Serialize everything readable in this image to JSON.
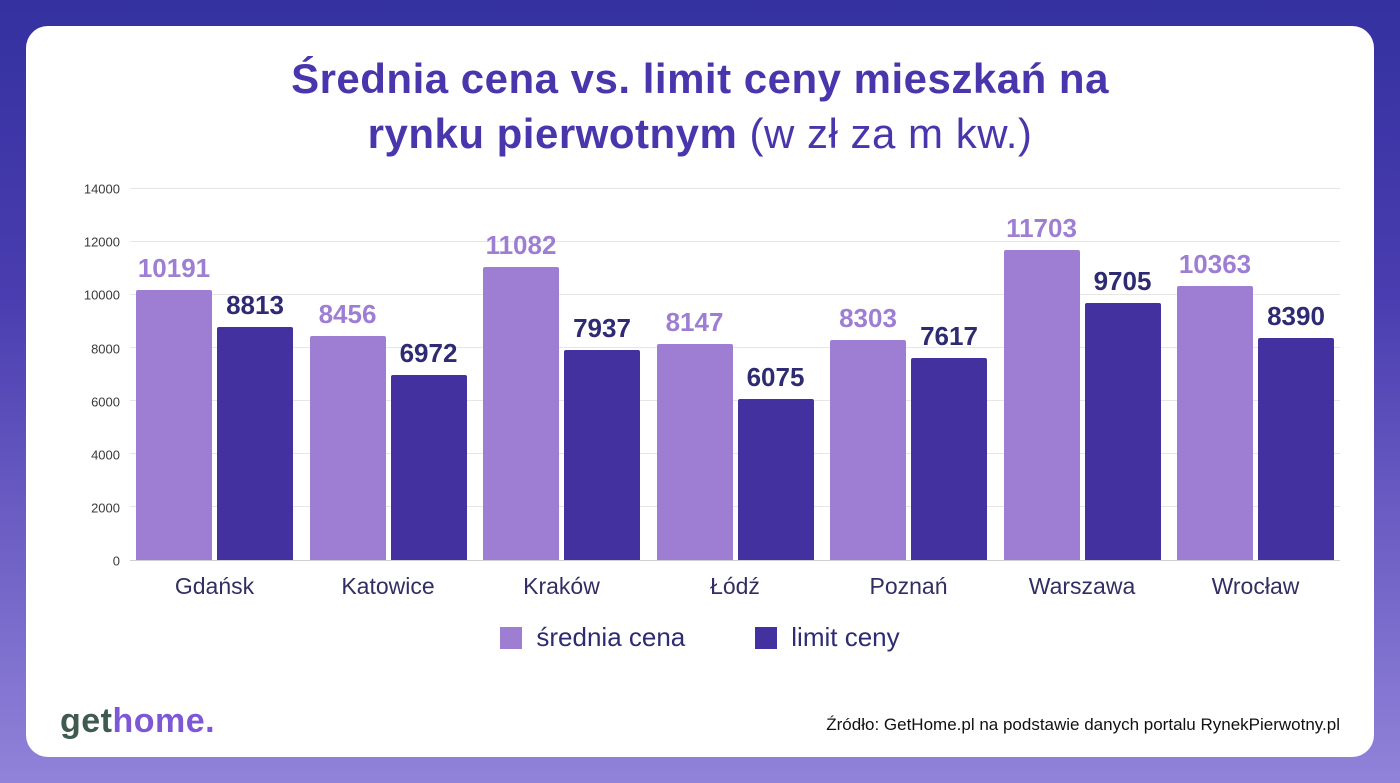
{
  "title": {
    "line1_bold": "Średnia cena vs. limit ceny mieszkań na",
    "line2_bold": "rynku pierwotnym",
    "line2_regular": " (w zł za m kw.)"
  },
  "chart_data": {
    "type": "bar",
    "categories": [
      "Gdańsk",
      "Katowice",
      "Kraków",
      "Łódź",
      "Poznań",
      "Warszawa",
      "Wrocław"
    ],
    "series": [
      {
        "name": "średnia cena",
        "color": "#9d7ed3",
        "label_color": "#9d7ed3",
        "values": [
          10191,
          8456,
          11082,
          8147,
          8303,
          11703,
          10363
        ]
      },
      {
        "name": "limit ceny",
        "color": "#43319f",
        "label_color": "#2e2b72",
        "values": [
          8813,
          6972,
          7937,
          6075,
          7617,
          9705,
          8390
        ]
      }
    ],
    "ylim": [
      0,
      14000
    ],
    "yticks": [
      0,
      2000,
      4000,
      6000,
      8000,
      10000,
      12000,
      14000
    ],
    "grid": true,
    "legend_position": "bottom"
  },
  "footer": {
    "logo": {
      "get": "get",
      "home": "home."
    },
    "source": "Źródło: GetHome.pl na podstawie danych portalu RynekPierwotny.pl"
  },
  "colors": {
    "title": "#4936ad",
    "background_gradient_top": "#3431a0",
    "background_gradient_bottom": "#9183d9",
    "category_label": "#322e63",
    "legend_text": "#2e2b72",
    "logo_get": "#3f5a4e",
    "logo_home": "#7e57d6"
  }
}
